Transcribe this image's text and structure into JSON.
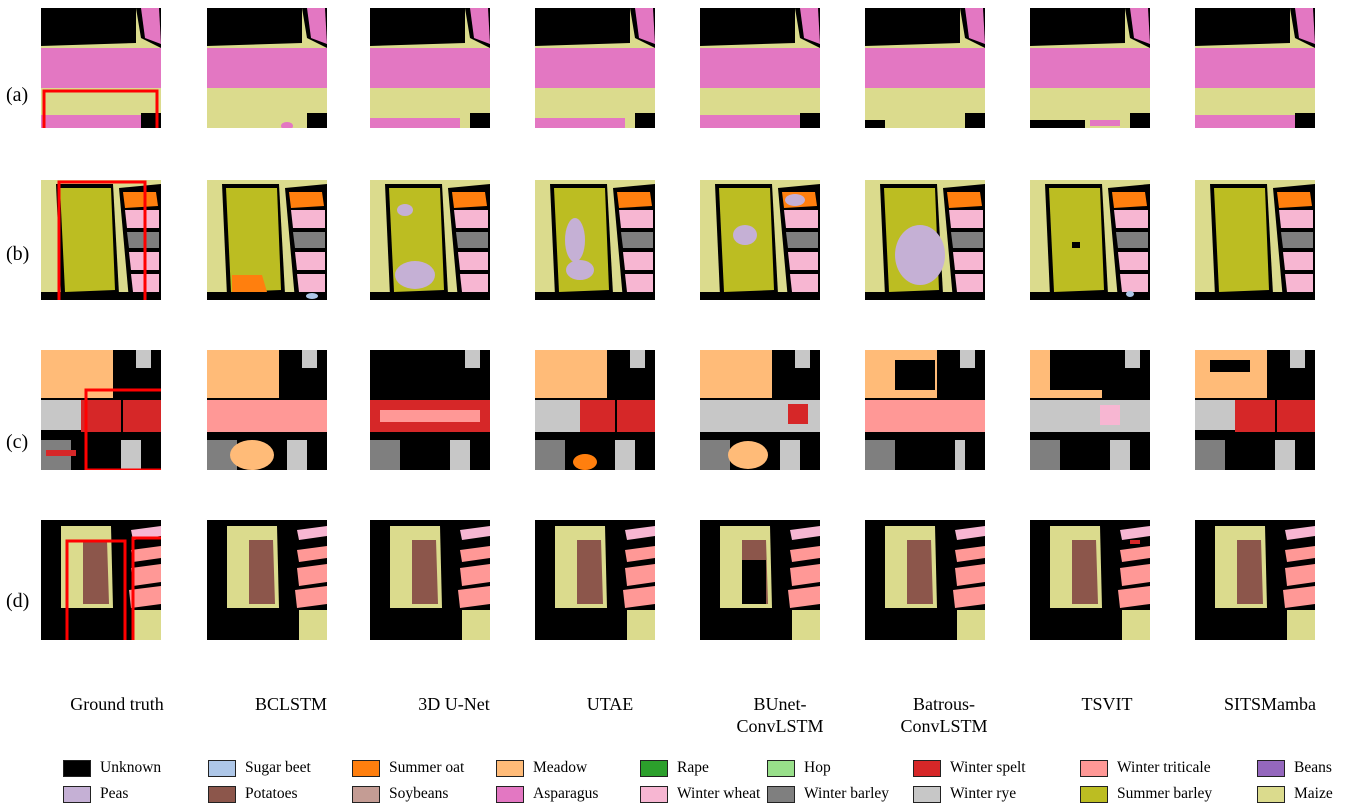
{
  "rows": [
    "(a)",
    "(b)",
    "(c)",
    "(d)"
  ],
  "methods": [
    "Ground truth",
    "BCLSTM",
    "3D U-Net",
    "UTAE",
    "BUnet-\nConvLSTM",
    "Batrous-\nConvLSTM",
    "TSVIT",
    "SITSMamba"
  ],
  "legend": [
    {
      "label": "Unknown",
      "color": "#000000"
    },
    {
      "label": "Sugar beet",
      "color": "#aec7e8"
    },
    {
      "label": "Summer oat",
      "color": "#ff7f0e"
    },
    {
      "label": "Meadow",
      "color": "#ffbb78"
    },
    {
      "label": "Rape",
      "color": "#2ca02c"
    },
    {
      "label": "Hop",
      "color": "#98df8a"
    },
    {
      "label": "Winter spelt",
      "color": "#d62728"
    },
    {
      "label": "Winter triticale",
      "color": "#ff9896"
    },
    {
      "label": "Beans",
      "color": "#9467bd"
    },
    {
      "label": "Peas",
      "color": "#c5b0d5"
    },
    {
      "label": "Potatoes",
      "color": "#8c564b"
    },
    {
      "label": "Soybeans",
      "color": "#c49c94"
    },
    {
      "label": "Asparagus",
      "color": "#e377c2"
    },
    {
      "label": "Winter wheat",
      "color": "#f7b6d2"
    },
    {
      "label": "Winter barley",
      "color": "#7f7f7f"
    },
    {
      "label": "Winter rye",
      "color": "#c7c7c7"
    },
    {
      "label": "Summer barley",
      "color": "#bcbd22"
    },
    {
      "label": "Maize",
      "color": "#dbdb8d"
    }
  ],
  "colors": {
    "highlight": "#ff0000"
  }
}
